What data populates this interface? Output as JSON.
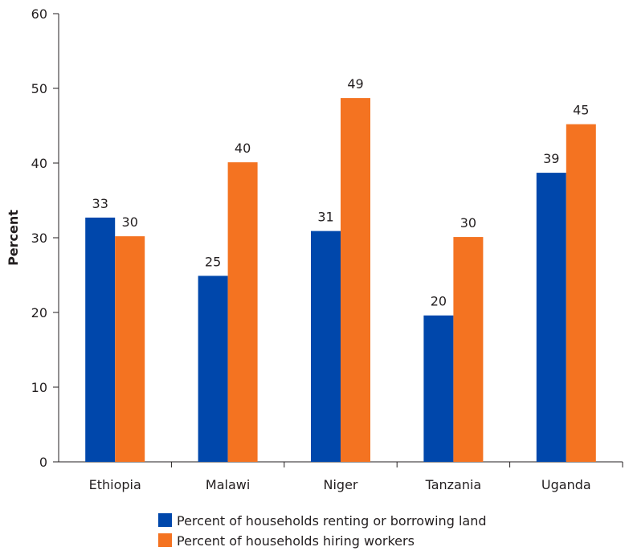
{
  "chart_data": {
    "type": "bar",
    "categories": [
      "Ethiopia",
      "Malawi",
      "Niger",
      "Tanzania",
      "Uganda"
    ],
    "series": [
      {
        "name": "Percent of households renting or borrowing land",
        "values": [
          32.7,
          24.9,
          30.9,
          19.6,
          38.7
        ],
        "labels": [
          "33",
          "25",
          "31",
          "20",
          "39"
        ],
        "color": "#0047ab"
      },
      {
        "name": "Percent of households hiring workers",
        "values": [
          30.2,
          40.1,
          48.7,
          30.1,
          45.2
        ],
        "labels": [
          "30",
          "40",
          "49",
          "30",
          "45"
        ],
        "color": "#f47321"
      }
    ],
    "ylabel": "Percent",
    "xlabel": "",
    "ylim": [
      0,
      60
    ],
    "yticks": [
      0,
      10,
      20,
      30,
      40,
      50,
      60
    ],
    "grid": false,
    "legend_position": "bottom"
  }
}
